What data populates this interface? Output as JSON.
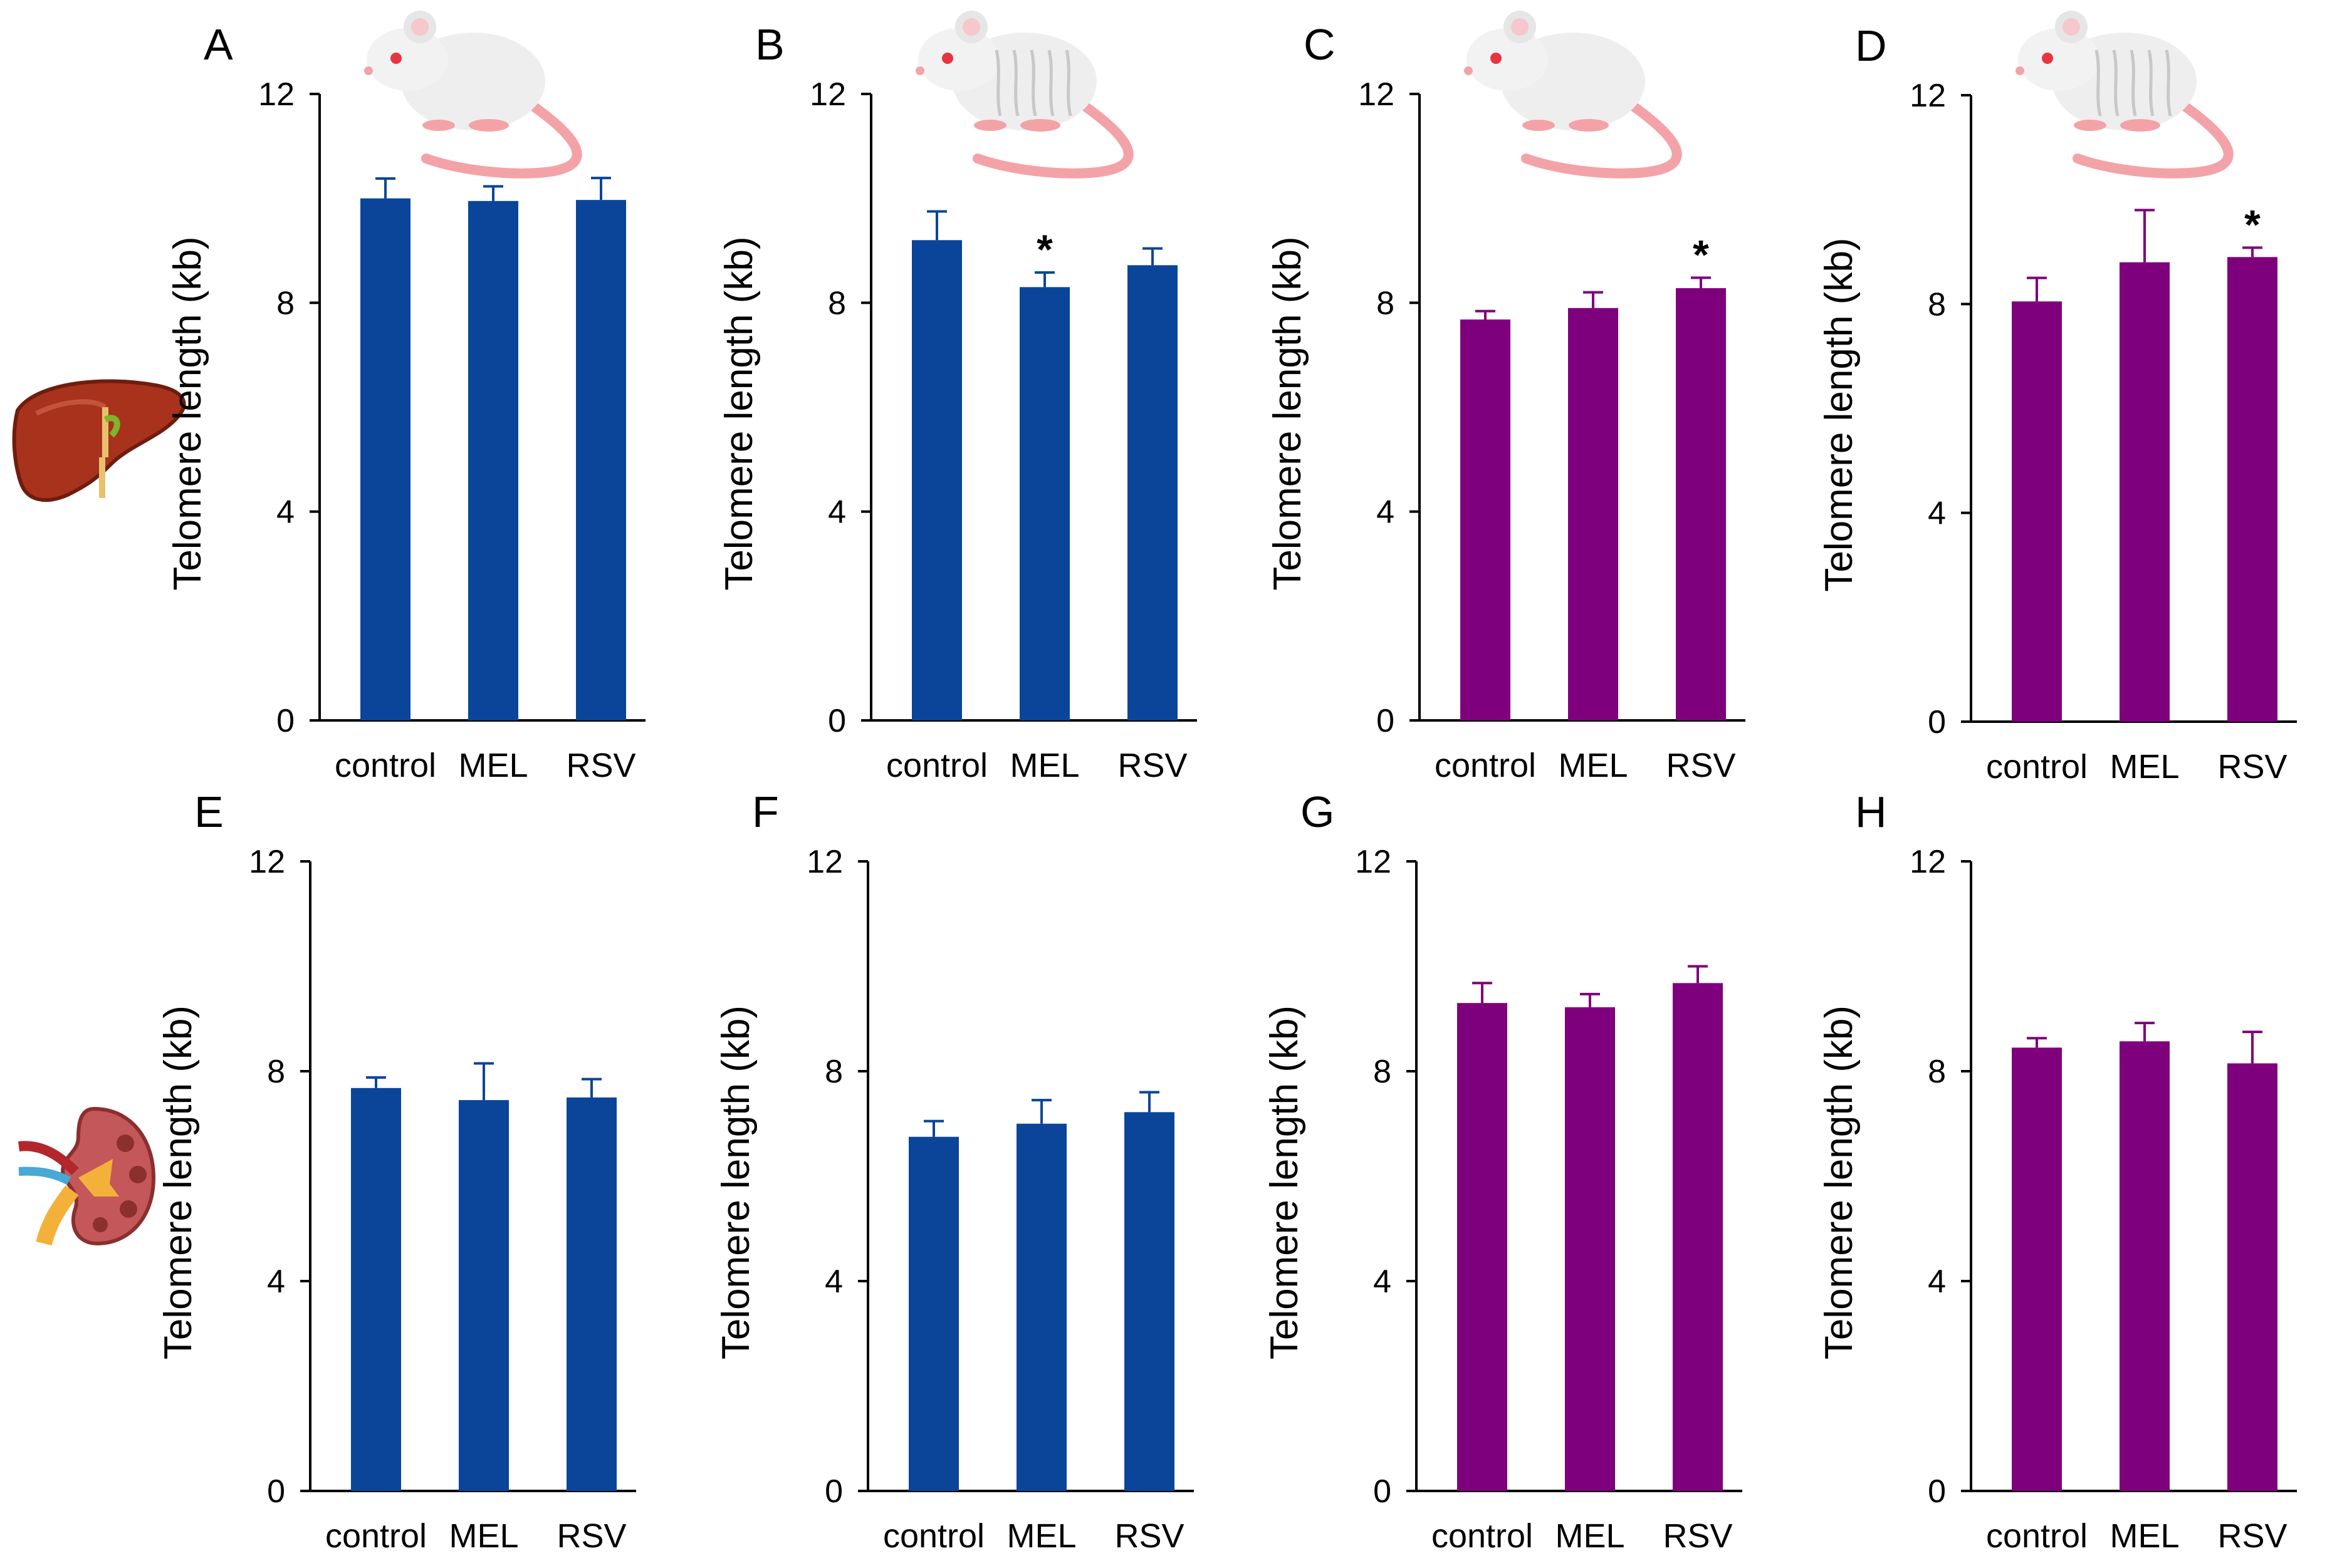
{
  "colors": {
    "blue": "#0a4599",
    "purple": "#7f007c",
    "axis": "#000000"
  },
  "icons": {
    "row1": "liver-icon",
    "row2": "kidney-icon",
    "panel_a": "young-rat-icon",
    "panel_b": "old-rat-icon",
    "panel_c": "young-rat-icon",
    "panel_d": "old-rat-icon"
  },
  "chart_data": [
    {
      "panel": "A",
      "type": "bar",
      "color": "blue",
      "ylabel": "Telomere length (kb)",
      "categories": [
        "control",
        "MEL",
        "RSV"
      ],
      "values": [
        10.0,
        9.95,
        9.97
      ],
      "errors": [
        0.38,
        0.28,
        0.42
      ],
      "significance": [
        "",
        "",
        ""
      ],
      "ylim": [
        0,
        12
      ],
      "yticks": [
        "0",
        "4",
        "8",
        "12"
      ]
    },
    {
      "panel": "B",
      "type": "bar",
      "color": "blue",
      "ylabel": "Telomere length (kb)",
      "categories": [
        "control",
        "MEL",
        "RSV"
      ],
      "values": [
        9.2,
        8.3,
        8.72
      ],
      "errors": [
        0.55,
        0.28,
        0.32
      ],
      "significance": [
        "",
        "*",
        ""
      ],
      "ylim": [
        0,
        12
      ],
      "yticks": [
        "0",
        "4",
        "8",
        "12"
      ]
    },
    {
      "panel": "C",
      "type": "bar",
      "color": "purple",
      "ylabel": "Telomere length (kb)",
      "categories": [
        "control",
        "MEL",
        "RSV"
      ],
      "values": [
        7.68,
        7.9,
        8.28
      ],
      "errors": [
        0.16,
        0.3,
        0.2
      ],
      "significance": [
        "",
        "",
        "*"
      ],
      "ylim": [
        0,
        12
      ],
      "yticks": [
        "0",
        "4",
        "8",
        "12"
      ]
    },
    {
      "panel": "D",
      "type": "bar",
      "color": "purple",
      "ylabel": "Telomere length (kb)",
      "categories": [
        "control",
        "MEL",
        "RSV"
      ],
      "values": [
        8.05,
        8.8,
        8.9
      ],
      "errors": [
        0.45,
        1.0,
        0.18
      ],
      "significance": [
        "",
        "",
        "*"
      ],
      "ylim": [
        0,
        12
      ],
      "yticks": [
        "0",
        "4",
        "8",
        "12"
      ]
    },
    {
      "panel": "E",
      "type": "bar",
      "color": "blue",
      "ylabel": "Telomere length (kb)",
      "categories": [
        "control",
        "MEL",
        "RSV"
      ],
      "values": [
        7.68,
        7.45,
        7.5
      ],
      "errors": [
        0.2,
        0.7,
        0.35
      ],
      "significance": [
        "",
        "",
        ""
      ],
      "ylim": [
        0,
        12
      ],
      "yticks": [
        "0",
        "4",
        "8",
        "12"
      ]
    },
    {
      "panel": "F",
      "type": "bar",
      "color": "blue",
      "ylabel": "Telomere length (kb)",
      "categories": [
        "control",
        "MEL",
        "RSV"
      ],
      "values": [
        6.75,
        7.0,
        7.22
      ],
      "errors": [
        0.3,
        0.45,
        0.38
      ],
      "significance": [
        "",
        "",
        ""
      ],
      "ylim": [
        0,
        12
      ],
      "yticks": [
        "0",
        "4",
        "8",
        "12"
      ]
    },
    {
      "panel": "G",
      "type": "bar",
      "color": "purple",
      "ylabel": "Telomere length (kb)",
      "categories": [
        "control",
        "MEL",
        "RSV"
      ],
      "values": [
        9.3,
        9.22,
        9.68
      ],
      "errors": [
        0.38,
        0.25,
        0.32
      ],
      "significance": [
        "",
        "",
        ""
      ],
      "ylim": [
        0,
        12
      ],
      "yticks": [
        "0",
        "4",
        "8",
        "12"
      ]
    },
    {
      "panel": "H",
      "type": "bar",
      "color": "purple",
      "ylabel": "Telomere length (kb)",
      "categories": [
        "control",
        "MEL",
        "RSV"
      ],
      "values": [
        8.45,
        8.57,
        8.15
      ],
      "errors": [
        0.18,
        0.35,
        0.6
      ],
      "significance": [
        "",
        "",
        ""
      ],
      "ylim": [
        0,
        12
      ],
      "yticks": [
        "0",
        "4",
        "8",
        "12"
      ]
    }
  ]
}
